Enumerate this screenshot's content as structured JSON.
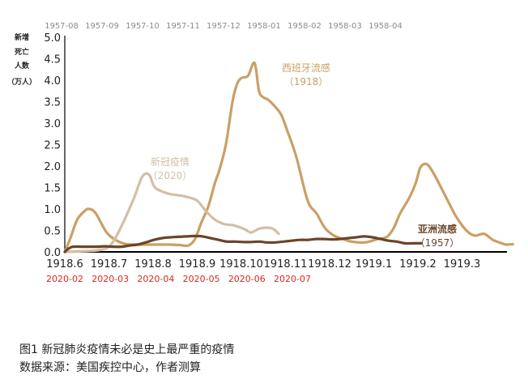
{
  "chart_data": {
    "type": "line",
    "ylabel": [
      "新增",
      "死亡",
      "人数",
      "（万人）"
    ],
    "ylim": [
      0,
      5.0
    ],
    "yticks": [
      "0.0",
      "0.5",
      "1.0",
      "1.5",
      "2.0",
      "2.5",
      "3.0",
      "3.5",
      "4.0",
      "4.5",
      "5.0"
    ],
    "x_main_ticks": [
      "1918.6",
      "1918.7",
      "1918.8",
      "1918.9",
      "1918.10",
      "1918.11",
      "1918.12",
      "1919.1",
      "1919.2",
      "1919.3"
    ],
    "x_top_ticks": [
      "1957-08",
      "1957-09",
      "1957-10",
      "1957-11",
      "1957-12",
      "1958-01",
      "1958-02",
      "1958-03",
      "1958-04"
    ],
    "x_bottom_ticks": [
      "2020-02",
      "2020-03",
      "2020-04",
      "2020-05",
      "2020-06",
      "2020-07"
    ],
    "series": [
      {
        "name": "西班牙流感",
        "year": "（1918）",
        "color": "#c9a064",
        "axis": "1918-main (months since 1918.6)",
        "x": [
          0,
          0.12,
          0.28,
          0.45,
          0.55,
          0.7,
          0.95,
          1.2,
          1.4,
          1.6,
          1.8,
          2.0,
          2.2,
          2.4,
          2.6,
          2.8,
          2.95,
          3.1,
          3.25,
          3.4,
          3.5,
          3.65,
          3.8,
          3.9,
          4.0,
          4.15,
          4.3,
          4.4,
          4.5,
          4.6,
          4.75,
          4.9,
          5.05,
          5.25,
          5.5,
          5.7,
          5.9,
          6.1,
          6.3,
          6.5,
          6.8,
          7.1,
          7.3,
          7.45,
          7.6,
          7.8,
          7.95,
          8.05,
          8.15,
          8.25,
          8.4,
          8.55,
          8.7,
          8.85,
          9.0,
          9.15,
          9.3,
          9.5,
          9.7,
          9.9,
          10.0,
          10.15
        ],
        "y": [
          0.0,
          0.3,
          0.75,
          0.95,
          1.0,
          0.9,
          0.45,
          0.25,
          0.18,
          0.17,
          0.17,
          0.17,
          0.17,
          0.17,
          0.16,
          0.15,
          0.3,
          0.7,
          1.05,
          1.6,
          1.9,
          2.5,
          3.5,
          3.9,
          4.05,
          4.1,
          4.4,
          3.75,
          3.6,
          3.55,
          3.4,
          3.2,
          2.8,
          2.2,
          1.2,
          0.9,
          0.55,
          0.38,
          0.3,
          0.24,
          0.22,
          0.3,
          0.35,
          0.55,
          0.9,
          1.25,
          1.6,
          1.95,
          2.05,
          2.0,
          1.75,
          1.45,
          1.15,
          0.85,
          0.62,
          0.45,
          0.38,
          0.42,
          0.28,
          0.2,
          0.17,
          0.18
        ]
      },
      {
        "name": "新冠疫情",
        "year": "（2020）",
        "color": "#d1c0a5",
        "axis": "2020-bottom (months since 2020-02)",
        "x": [
          0,
          0.5,
          0.8,
          1.0,
          1.2,
          1.5,
          1.7,
          1.85,
          1.95,
          2.05,
          2.3,
          2.6,
          2.9,
          3.1,
          3.3,
          3.5,
          3.7,
          3.9,
          4.0,
          4.1,
          4.3,
          4.55,
          4.7
        ],
        "y": [
          0.0,
          0.02,
          0.05,
          0.15,
          0.5,
          1.2,
          1.75,
          1.8,
          1.55,
          1.45,
          1.35,
          1.3,
          1.2,
          0.95,
          0.75,
          0.65,
          0.62,
          0.55,
          0.5,
          0.45,
          0.55,
          0.55,
          0.42
        ]
      },
      {
        "name": "亚洲流感",
        "year": "（1957）",
        "color": "#6b4428",
        "axis": "1957-top (months since 1957-08)",
        "x": [
          0,
          0.1,
          0.2,
          0.4,
          0.6,
          0.8,
          1.0,
          1.2,
          1.4,
          1.6,
          1.8,
          2.0,
          2.2,
          2.4,
          2.6,
          2.8,
          3.0,
          3.2,
          3.4,
          3.6,
          3.8,
          4.0,
          4.2,
          4.4,
          4.6,
          4.8,
          5.0,
          5.2,
          5.4,
          5.6,
          5.8,
          6.0,
          6.2,
          6.4,
          6.6,
          6.8,
          7.0,
          7.2,
          7.4,
          7.6,
          7.8,
          8.0,
          8.2,
          8.4,
          8.6,
          8.8
        ],
        "y": [
          0.0,
          0.08,
          0.12,
          0.12,
          0.12,
          0.12,
          0.13,
          0.12,
          0.12,
          0.15,
          0.17,
          0.22,
          0.28,
          0.32,
          0.34,
          0.35,
          0.36,
          0.37,
          0.36,
          0.32,
          0.28,
          0.24,
          0.24,
          0.23,
          0.23,
          0.24,
          0.22,
          0.22,
          0.24,
          0.26,
          0.28,
          0.28,
          0.3,
          0.3,
          0.29,
          0.3,
          0.32,
          0.34,
          0.36,
          0.34,
          0.3,
          0.26,
          0.24,
          0.2,
          0.2,
          0.2
        ]
      }
    ],
    "annotations": [
      {
        "series": 0,
        "label": "西班牙流感",
        "year": "（1918）"
      },
      {
        "series": 1,
        "label": "新冠疫情",
        "year": "（2020）"
      },
      {
        "series": 2,
        "label": "亚洲流感",
        "year": "（1957）"
      }
    ]
  },
  "caption": {
    "title": "图1  新冠肺炎疫情未必是史上最严重的疫情",
    "source": "数据来源：美国疾控中心，作者测算"
  },
  "colors": {
    "axis": "#000000",
    "tick_text": "#222222",
    "top_tick_text": "#8c8c8c",
    "bottom_tick_text": "#d42a1e"
  }
}
